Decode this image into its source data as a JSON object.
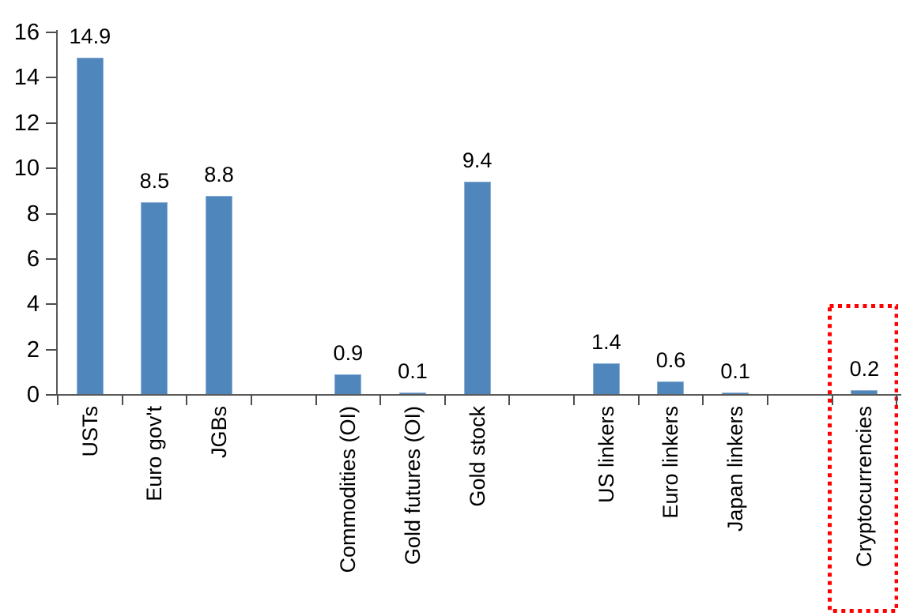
{
  "chart_data": {
    "type": "bar",
    "title": "",
    "xlabel": "",
    "ylabel": "",
    "categories": [
      "USTs",
      "Euro gov't",
      "JGBs",
      "",
      "Commodities (OI)",
      "Gold futures (OI)",
      "Gold stock",
      "",
      "US linkers",
      "Euro linkers",
      "Japan linkers",
      "",
      "Cryptocurrencies"
    ],
    "values": [
      14.9,
      8.5,
      8.8,
      null,
      0.9,
      0.1,
      9.4,
      null,
      1.4,
      0.6,
      0.1,
      null,
      0.2
    ],
    "data_labels": [
      "14.9",
      "8.5",
      "8.8",
      "",
      "0.9",
      "0.1",
      "9.4",
      "",
      "1.4",
      "0.6",
      "0.1",
      "",
      "0.2"
    ],
    "ylim": [
      0,
      16
    ],
    "yticks": [
      0,
      2,
      4,
      6,
      8,
      10,
      12,
      14,
      16
    ],
    "grid": false,
    "legend": "none",
    "bar_color": "#4F86BC",
    "axis_color": "#595959",
    "text_color": "#000000",
    "highlight": {
      "category": "Cryptocurrencies",
      "style": "red-dotted-rectangle",
      "color": "#FF0000"
    }
  }
}
